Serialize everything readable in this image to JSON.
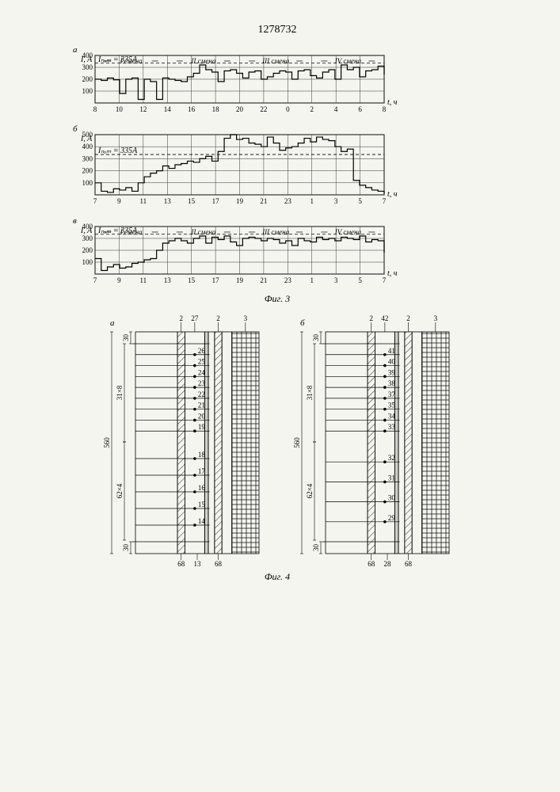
{
  "document_number": "1278732",
  "fig3": {
    "caption": "Фиг. 3",
    "nominal_label": "Iₙₒₘ = 335A",
    "nominal_value": 335,
    "y_axis_label": "I, A",
    "x_axis_label": "t, ч",
    "shifts": [
      "I смена",
      "II смена",
      "III смена",
      "IV смена"
    ],
    "grid_color": "#333",
    "bg_color": "#ffffff",
    "line_color": "#000",
    "charts": {
      "a": {
        "panel": "а",
        "ylim": [
          0,
          400
        ],
        "yticks": [
          100,
          200,
          300,
          400
        ],
        "xticks": [
          8,
          10,
          12,
          14,
          16,
          18,
          20,
          22,
          0,
          2,
          4,
          6,
          8
        ],
        "data_y": [
          200,
          190,
          210,
          195,
          80,
          200,
          210,
          30,
          200,
          180,
          30,
          210,
          200,
          190,
          180,
          220,
          250,
          320,
          280,
          260,
          180,
          270,
          280,
          250,
          210,
          260,
          270,
          200,
          220,
          250,
          270,
          260,
          200,
          270,
          280,
          230,
          210,
          260,
          280,
          200,
          320,
          280,
          300,
          220,
          270,
          280,
          310,
          240
        ]
      },
      "b": {
        "panel": "б",
        "ylim": [
          0,
          500
        ],
        "yticks": [
          100,
          200,
          300,
          400,
          500
        ],
        "xticks": [
          7,
          9,
          11,
          13,
          15,
          17,
          19,
          21,
          23,
          1,
          3,
          5,
          7
        ],
        "data_y": [
          100,
          30,
          20,
          50,
          40,
          60,
          30,
          100,
          150,
          180,
          200,
          240,
          220,
          250,
          260,
          280,
          270,
          300,
          320,
          280,
          360,
          470,
          500,
          460,
          470,
          430,
          420,
          400,
          480,
          430,
          370,
          390,
          400,
          430,
          470,
          440,
          480,
          460,
          450,
          400,
          360,
          380,
          120,
          80,
          60,
          40,
          30,
          10
        ]
      },
      "v": {
        "panel": "в",
        "ylim": [
          0,
          400
        ],
        "yticks": [
          100,
          200,
          300,
          400
        ],
        "xticks": [
          7,
          9,
          11,
          13,
          15,
          17,
          19,
          21,
          23,
          1,
          3,
          5,
          7
        ],
        "data_y": [
          130,
          30,
          60,
          80,
          50,
          60,
          90,
          100,
          120,
          130,
          200,
          260,
          280,
          300,
          280,
          260,
          300,
          320,
          260,
          310,
          290,
          320,
          270,
          240,
          300,
          310,
          300,
          280,
          300,
          290,
          260,
          280,
          240,
          300,
          280,
          270,
          310,
          290,
          300,
          280,
          310,
          300,
          290,
          320,
          270,
          290,
          280,
          180
        ]
      }
    }
  },
  "fig4": {
    "caption": "Фиг. 4",
    "diagrams": {
      "a": {
        "panel": "а",
        "top_refs": [
          "2",
          "27",
          "2",
          "3"
        ],
        "bottom_refs": [
          "68",
          "13",
          "68"
        ],
        "left_dims": [
          {
            "label": "30",
            "span": [
              0,
              30
            ]
          },
          {
            "label": "31×8",
            "span": [
              30,
              278
            ]
          },
          {
            "label": "560",
            "span": [
              0,
              560
            ]
          },
          {
            "label": "62×4",
            "span": [
              278,
              526
            ]
          },
          {
            "label": "30",
            "span": [
              530,
              560
            ]
          }
        ],
        "node_labels": [
          "26",
          "25",
          "24",
          "23",
          "22",
          "21",
          "20",
          "19",
          "18",
          "17",
          "16",
          "15",
          "14"
        ],
        "hatch_color": "#444"
      },
      "b": {
        "panel": "б",
        "top_refs": [
          "2",
          "42",
          "2",
          "3"
        ],
        "bottom_refs": [
          "68",
          "28",
          "68"
        ],
        "left_dims": [
          {
            "label": "30",
            "span": [
              0,
              30
            ]
          },
          {
            "label": "31×8",
            "span": [
              30,
              278
            ]
          },
          {
            "label": "560",
            "span": [
              0,
              560
            ]
          },
          {
            "label": "62×4",
            "span": [
              278,
              526
            ]
          },
          {
            "label": "30",
            "span": [
              530,
              560
            ]
          }
        ],
        "node_labels": [
          "41",
          "40",
          "39",
          "38",
          "37",
          "35",
          "34",
          "33",
          "32",
          "31",
          "30",
          "29"
        ],
        "hatch_color": "#444"
      }
    }
  }
}
